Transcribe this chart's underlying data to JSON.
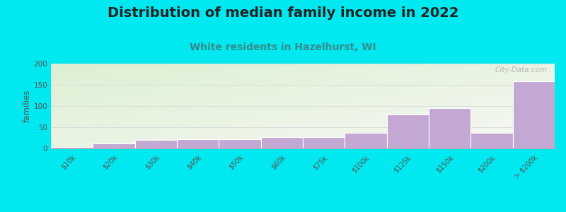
{
  "title": "Distribution of median family income in 2022",
  "subtitle": "White residents in Hazelhurst, WI",
  "categories": [
    "$10k",
    "$20k",
    "$30k",
    "$40k",
    "$50k",
    "$60k",
    "$75k",
    "$100k",
    "$125k",
    "$150k",
    "$200k",
    "> $200k"
  ],
  "values": [
    3,
    12,
    20,
    21,
    21,
    26,
    26,
    37,
    80,
    95,
    37,
    158
  ],
  "bar_color": "#c4a8d4",
  "bar_edge_color": "#b89ec3",
  "ylabel": "families",
  "ylim": [
    0,
    200
  ],
  "yticks": [
    0,
    50,
    100,
    150,
    200
  ],
  "background_outer": "#00e8f0",
  "title_fontsize": 14,
  "subtitle_fontsize": 10,
  "subtitle_color": "#3a8a8a",
  "watermark": "City-Data.com",
  "grid_color": "#d8d8d8",
  "title_color": "#222222"
}
